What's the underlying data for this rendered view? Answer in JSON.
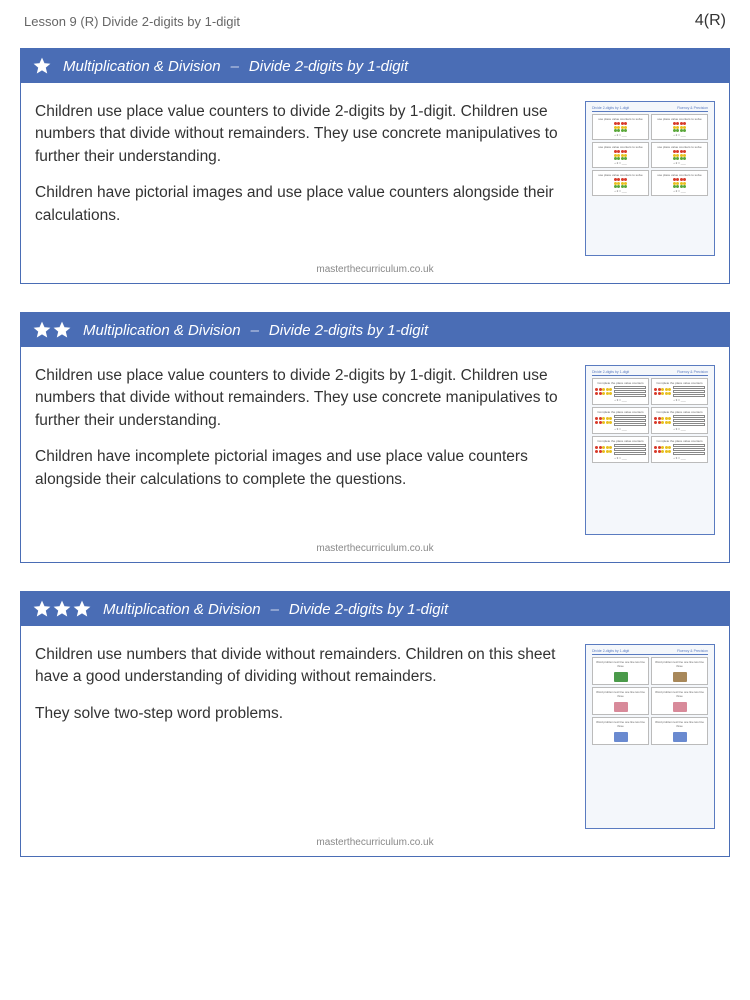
{
  "page": {
    "header_left": "Lesson 9 (R) Divide 2-digits by 1-digit",
    "header_right": "4(R)",
    "footer": "masterthecurriculum.co.uk"
  },
  "cards": [
    {
      "stars": 1,
      "topic": "Multiplication & Division",
      "subtitle": "Divide 2-digits by 1-digit",
      "para1": "Children use place value counters to divide 2-digits by 1-digit. Children use numbers that divide without remainders. They use concrete manipulatives to further their understanding.",
      "para2": "Children have pictorial images and use place value counters alongside their calculations.",
      "thumb_height": 155,
      "thumb_rows": 3,
      "header_color": "#4a6db5",
      "thumb_style": "counters"
    },
    {
      "stars": 2,
      "topic": "Multiplication & Division",
      "subtitle": "Divide 2-digits by 1-digit",
      "para1": "Children use place value counters to divide 2-digits by 1-digit. Children use numbers that divide without remainders. They use concrete manipulatives to further their understanding.",
      "para2": "Children have incomplete pictorial images and use place value counters alongside their calculations to complete the questions.",
      "thumb_height": 170,
      "thumb_rows": 3,
      "header_color": "#4a6db5",
      "thumb_style": "bars"
    },
    {
      "stars": 3,
      "topic": "Multiplication & Division",
      "subtitle": "Divide 2-digits by 1-digit",
      "para1": "Children use numbers that divide without remainders. Children on this sheet have a good understanding of dividing without remainders.",
      "para2": "They solve two-step word problems.",
      "thumb_height": 185,
      "thumb_rows": 3,
      "header_color": "#4a6db5",
      "thumb_style": "word"
    }
  ],
  "colors": {
    "header_bg": "#4a6db5",
    "body_bg": "#ffffff",
    "text": "#333333",
    "muted": "#888888",
    "red": "#d83a2a",
    "yellow": "#e8c020",
    "green": "#5aa83a"
  }
}
